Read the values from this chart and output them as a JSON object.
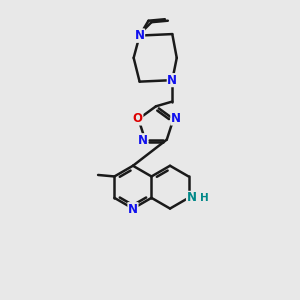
{
  "bg_color": "#e8e8e8",
  "bond_color": "#1a1a1a",
  "N_color": "#1010ee",
  "O_color": "#dd0000",
  "NH_color": "#008888",
  "lw": 1.8,
  "fs": 8.5,
  "figsize": [
    3.0,
    3.0
  ],
  "dpi": 100,
  "xlim": [
    0,
    10
  ],
  "ylim": [
    0,
    10
  ]
}
